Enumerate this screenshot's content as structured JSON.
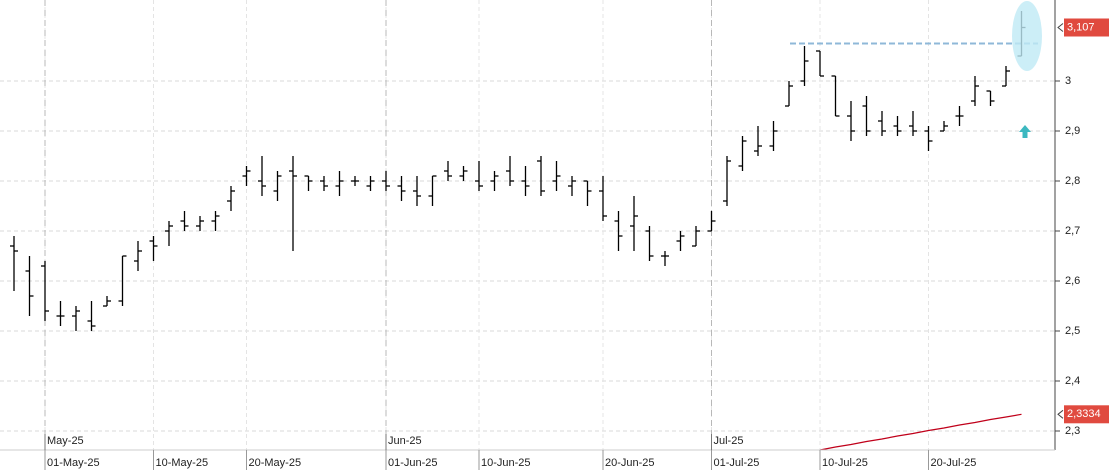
{
  "chart_data": {
    "type": "ohlc",
    "x": [
      "29-Apr-25",
      "30-Apr-25",
      "01-May-25",
      "02-May-25",
      "05-May-25",
      "06-May-25",
      "07-May-25",
      "08-May-25",
      "09-May-25",
      "12-May-25",
      "13-May-25",
      "14-May-25",
      "15-May-25",
      "16-May-25",
      "19-May-25",
      "20-May-25",
      "21-May-25",
      "22-May-25",
      "23-May-25",
      "26-May-25",
      "27-May-25",
      "28-May-25",
      "29-May-25",
      "30-May-25",
      "02-Jun-25",
      "03-Jun-25",
      "04-Jun-25",
      "05-Jun-25",
      "06-Jun-25",
      "09-Jun-25",
      "10-Jun-25",
      "11-Jun-25",
      "12-Jun-25",
      "13-Jun-25",
      "16-Jun-25",
      "17-Jun-25",
      "18-Jun-25",
      "19-Jun-25",
      "20-Jun-25",
      "23-Jun-25",
      "24-Jun-25",
      "25-Jun-25",
      "26-Jun-25",
      "27-Jun-25",
      "30-Jun-25",
      "01-Jul-25",
      "02-Jul-25",
      "03-Jul-25",
      "04-Jul-25",
      "07-Jul-25",
      "08-Jul-25",
      "09-Jul-25",
      "10-Jul-25",
      "11-Jul-25",
      "14-Jul-25",
      "15-Jul-25",
      "16-Jul-25",
      "17-Jul-25",
      "18-Jul-25",
      "21-Jul-25",
      "22-Jul-25",
      "23-Jul-25",
      "24-Jul-25",
      "25-Jul-25",
      "28-Jul-25",
      "29-Jul-25"
    ],
    "open": [
      2.67,
      2.62,
      2.63,
      2.53,
      2.53,
      2.52,
      2.55,
      2.56,
      2.64,
      2.68,
      2.7,
      2.72,
      2.71,
      2.72,
      2.76,
      2.81,
      2.8,
      2.78,
      2.82,
      2.81,
      2.8,
      2.79,
      2.8,
      2.79,
      2.8,
      2.79,
      2.78,
      2.77,
      2.82,
      2.81,
      2.8,
      2.8,
      2.82,
      2.8,
      2.84,
      2.8,
      2.79,
      2.8,
      2.78,
      2.72,
      2.71,
      2.7,
      2.65,
      2.68,
      2.67,
      2.7,
      2.76,
      2.83,
      2.86,
      2.87,
      2.95,
      3.0,
      3.06,
      3.01,
      2.93,
      2.95,
      2.92,
      2.91,
      2.91,
      2.9,
      2.9,
      2.93,
      2.96,
      2.98,
      2.99,
      3.05
    ],
    "high": [
      2.69,
      2.65,
      2.64,
      2.56,
      2.55,
      2.56,
      2.57,
      2.65,
      2.68,
      2.69,
      2.72,
      2.74,
      2.73,
      2.74,
      2.79,
      2.83,
      2.85,
      2.82,
      2.85,
      2.81,
      2.81,
      2.82,
      2.81,
      2.81,
      2.82,
      2.81,
      2.81,
      2.81,
      2.84,
      2.83,
      2.84,
      2.82,
      2.85,
      2.83,
      2.85,
      2.84,
      2.81,
      2.8,
      2.81,
      2.74,
      2.77,
      2.71,
      2.66,
      2.7,
      2.71,
      2.74,
      2.85,
      2.89,
      2.91,
      2.92,
      3.0,
      3.07,
      3.06,
      3.01,
      2.96,
      2.97,
      2.94,
      2.93,
      2.94,
      2.91,
      2.92,
      2.95,
      3.01,
      2.98,
      3.03,
      3.14
    ],
    "low": [
      2.58,
      2.53,
      2.52,
      2.51,
      2.5,
      2.5,
      2.55,
      2.55,
      2.62,
      2.64,
      2.67,
      2.7,
      2.7,
      2.7,
      2.74,
      2.79,
      2.77,
      2.76,
      2.66,
      2.78,
      2.78,
      2.77,
      2.79,
      2.78,
      2.78,
      2.76,
      2.75,
      2.75,
      2.8,
      2.8,
      2.78,
      2.78,
      2.79,
      2.77,
      2.77,
      2.78,
      2.77,
      2.75,
      2.72,
      2.66,
      2.66,
      2.64,
      2.63,
      2.66,
      2.67,
      2.7,
      2.75,
      2.82,
      2.85,
      2.86,
      2.95,
      2.99,
      3.01,
      2.93,
      2.88,
      2.89,
      2.89,
      2.89,
      2.89,
      2.86,
      2.9,
      2.91,
      2.95,
      2.95,
      2.99,
      3.05
    ],
    "close": [
      2.66,
      2.57,
      2.54,
      2.53,
      2.54,
      2.51,
      2.56,
      2.65,
      2.66,
      2.67,
      2.71,
      2.71,
      2.72,
      2.73,
      2.78,
      2.82,
      2.79,
      2.81,
      2.81,
      2.8,
      2.79,
      2.8,
      2.8,
      2.8,
      2.79,
      2.78,
      2.77,
      2.81,
      2.81,
      2.82,
      2.79,
      2.81,
      2.8,
      2.79,
      2.78,
      2.81,
      2.8,
      2.78,
      2.73,
      2.69,
      2.73,
      2.65,
      2.65,
      2.69,
      2.7,
      2.72,
      2.84,
      2.88,
      2.87,
      2.9,
      2.99,
      3.04,
      3.01,
      2.93,
      2.9,
      2.9,
      2.9,
      2.9,
      2.9,
      2.88,
      2.91,
      2.93,
      2.99,
      2.96,
      3.02,
      3.107
    ],
    "color": "#000000",
    "moving_average": {
      "color": "#c0001a",
      "values": [
        null,
        null,
        null,
        null,
        null,
        null,
        null,
        null,
        null,
        null,
        null,
        null,
        null,
        null,
        null,
        null,
        null,
        null,
        null,
        null,
        null,
        null,
        null,
        null,
        null,
        null,
        null,
        null,
        null,
        null,
        null,
        null,
        null,
        null,
        null,
        null,
        null,
        null,
        null,
        null,
        null,
        null,
        null,
        null,
        null,
        null,
        null,
        null,
        null,
        null,
        null,
        null,
        2.262,
        2.268,
        2.273,
        2.279,
        2.284,
        2.29,
        2.295,
        2.301,
        2.306,
        2.312,
        2.317,
        2.323,
        2.328,
        2.3334
      ]
    },
    "horizontal_line": {
      "value": 3.075,
      "color": "#8fb8d8"
    },
    "price_tags": [
      {
        "value": 3.107,
        "label": "3,107",
        "color": "#e04a3f"
      },
      {
        "value": 2.3334,
        "label": "2,3334",
        "color": "#e04a3f"
      }
    ],
    "ylim": [
      2.262,
      3.162
    ],
    "yticks": [
      {
        "value": 2.3,
        "label": "2,3"
      },
      {
        "value": 2.4,
        "label": "2,4"
      },
      {
        "value": 2.5,
        "label": "2,5"
      },
      {
        "value": 2.6,
        "label": "2,6"
      },
      {
        "value": 2.7,
        "label": "2,7"
      },
      {
        "value": 2.8,
        "label": "2,8"
      },
      {
        "value": 2.9,
        "label": "2,9"
      },
      3
    ],
    "xticks": [
      "01-May-25",
      "10-May-25",
      "20-May-25",
      "01-Jun-25",
      "10-Jun-25",
      "20-Jun-25",
      "01-Jul-25",
      "10-Jul-25",
      "20-Jul-25"
    ],
    "month_labels": [
      "May-25",
      "Jun-25",
      "Jul-25"
    ],
    "grid": true
  }
}
